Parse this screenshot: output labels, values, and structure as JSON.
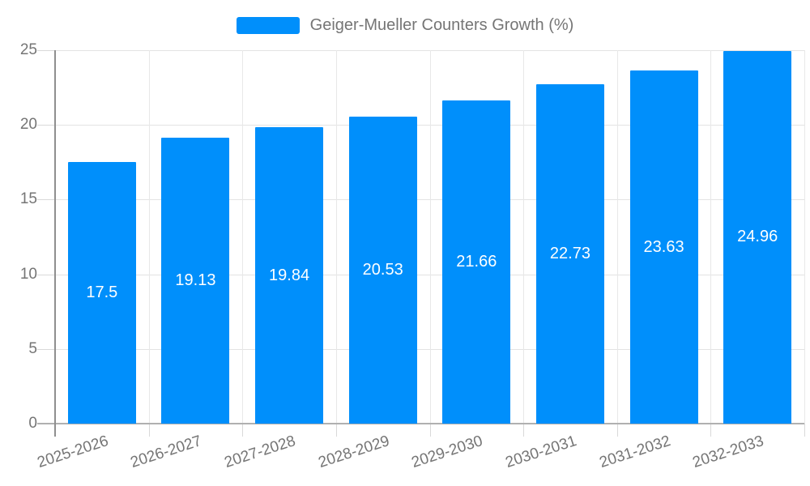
{
  "legend": {
    "label": "Geiger-Mueller Counters Growth (%)"
  },
  "chart_data": {
    "type": "bar",
    "title": "Geiger-Mueller Counters Growth (%)",
    "categories": [
      "2025-2026",
      "2026-2027",
      "2027-2028",
      "2028-2029",
      "2029-2030",
      "2030-2031",
      "2031-2032",
      "2032-2033"
    ],
    "values": [
      17.5,
      19.13,
      19.84,
      20.53,
      21.66,
      22.73,
      23.63,
      24.96
    ],
    "value_labels": [
      "17.5",
      "19.13",
      "19.84",
      "20.53",
      "21.66",
      "22.73",
      "23.63",
      "24.96"
    ],
    "xlabel": "",
    "ylabel": "",
    "ylim": [
      0,
      25
    ],
    "yticks": [
      0,
      5,
      10,
      15,
      20,
      25
    ],
    "grid": true,
    "legend_position": "top-center",
    "bar_color": "#008FFB",
    "value_label_color": "#ffffff",
    "axis_text_color": "#757575",
    "gridline_color": "#e3e3e3"
  }
}
